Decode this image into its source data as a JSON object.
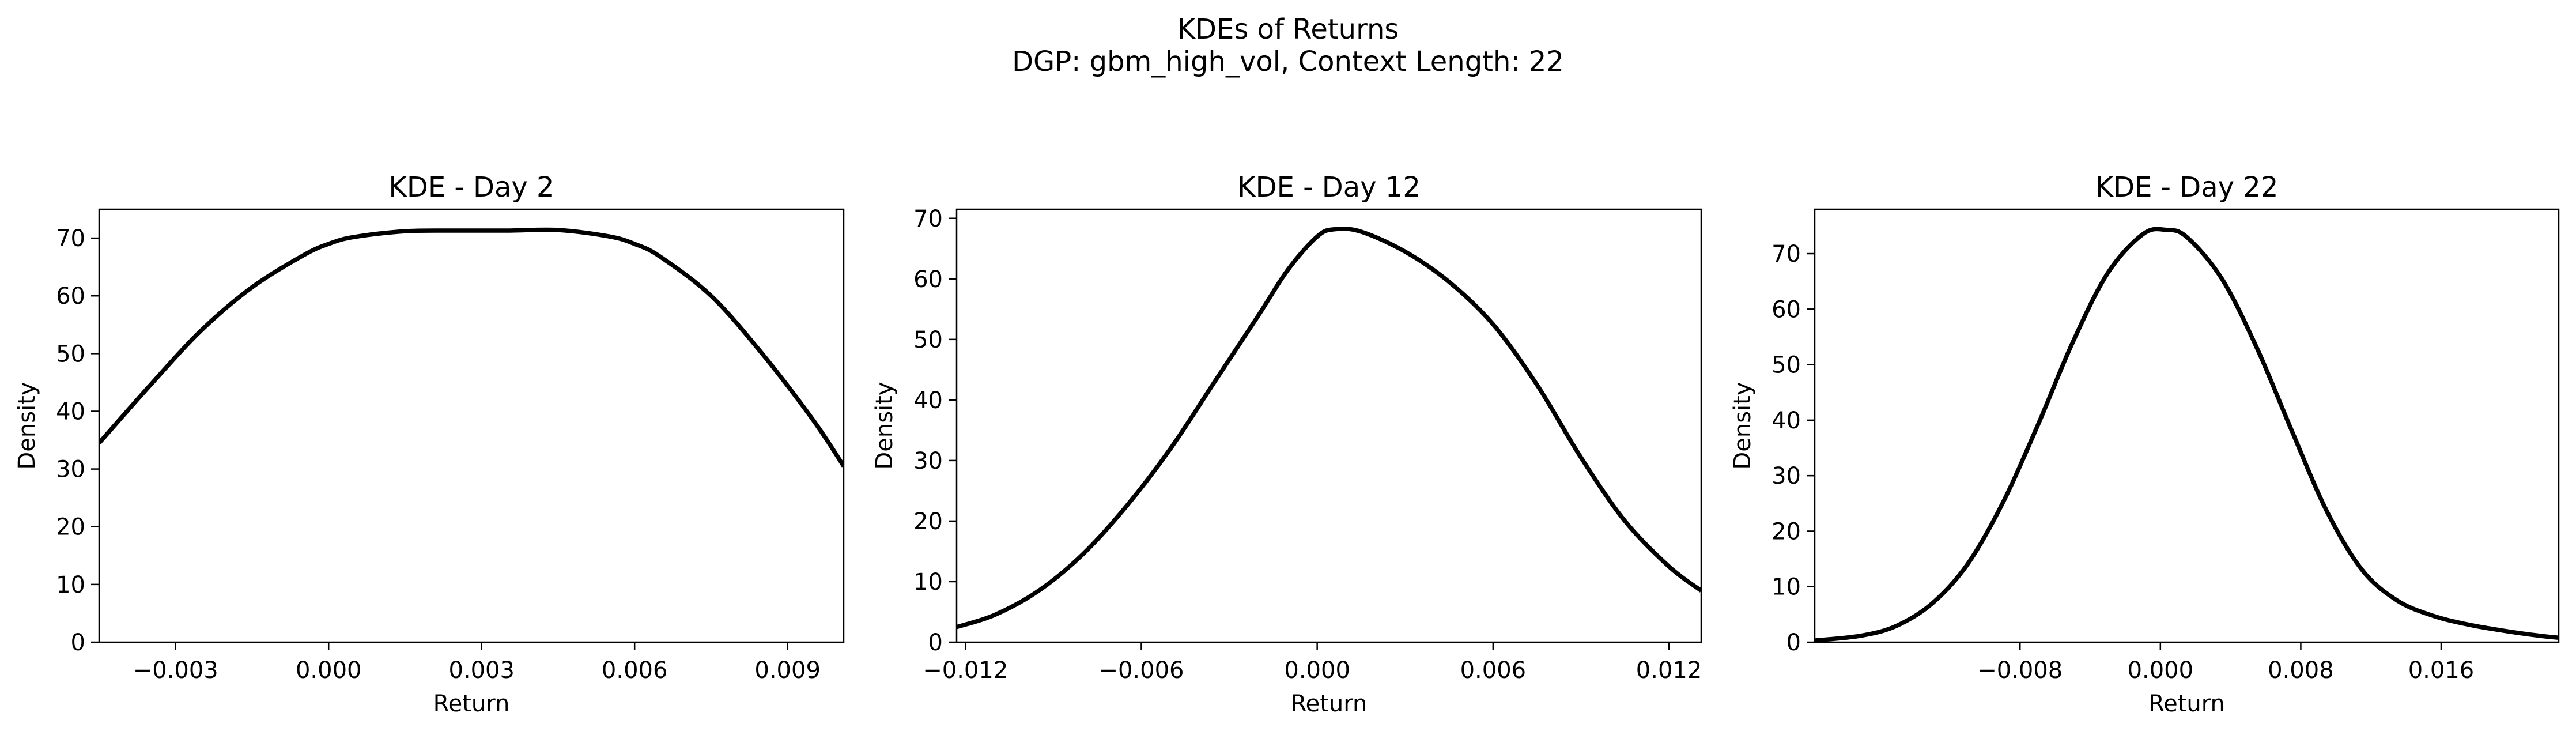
{
  "figure": {
    "title": "KDEs of Returns",
    "subtitle": "DGP: gbm_high_vol, Context Length: 22"
  },
  "chart_data": [
    {
      "type": "line",
      "title": "KDE - Day 2",
      "xlabel": "Return",
      "ylabel": "Density",
      "xlim": [
        -0.0045,
        0.0101
      ],
      "ylim": [
        0,
        75
      ],
      "xticks": [
        -0.003,
        0.0,
        0.003,
        0.006,
        0.009
      ],
      "xtick_labels": [
        "−0.003",
        "0.000",
        "0.003",
        "0.006",
        "0.009"
      ],
      "yticks": [
        0,
        10,
        20,
        30,
        40,
        50,
        60,
        70
      ],
      "ytick_labels": [
        "0",
        "10",
        "20",
        "30",
        "40",
        "50",
        "60",
        "70"
      ],
      "grid": false,
      "series": [
        {
          "color": "#000000",
          "x": [
            -0.0045,
            -0.0035,
            -0.0025,
            -0.0015,
            -0.0005,
            0.0,
            0.0005,
            0.0015,
            0.0025,
            0.0035,
            0.0045,
            0.0055,
            0.006,
            0.0065,
            0.0075,
            0.0085,
            0.0095,
            0.0101
          ],
          "y": [
            34.5,
            44.5,
            54.0,
            61.5,
            67.0,
            69.0,
            70.2,
            71.2,
            71.3,
            71.3,
            71.4,
            70.3,
            69.0,
            66.8,
            60.0,
            50.0,
            38.5,
            30.5
          ]
        }
      ]
    },
    {
      "type": "line",
      "title": "KDE - Day 12",
      "xlabel": "Return",
      "ylabel": "Density",
      "xlim": [
        -0.0123,
        0.0131
      ],
      "ylim": [
        0,
        71.5
      ],
      "xticks": [
        -0.012,
        -0.006,
        0.0,
        0.006,
        0.012
      ],
      "xtick_labels": [
        "−0.012",
        "−0.006",
        "0.000",
        "0.006",
        "0.012"
      ],
      "yticks": [
        0,
        10,
        20,
        30,
        40,
        50,
        60,
        70
      ],
      "ytick_labels": [
        "0",
        "10",
        "20",
        "30",
        "40",
        "50",
        "60",
        "70"
      ],
      "grid": false,
      "series": [
        {
          "color": "#000000",
          "x": [
            -0.0123,
            -0.011,
            -0.0095,
            -0.008,
            -0.0065,
            -0.005,
            -0.0035,
            -0.002,
            -0.001,
            0.0,
            0.0006,
            0.0015,
            0.003,
            0.0045,
            0.006,
            0.0075,
            0.009,
            0.0105,
            0.012,
            0.0131
          ],
          "y": [
            2.5,
            4.5,
            8.5,
            14.5,
            22.5,
            32.0,
            43.0,
            54.0,
            61.5,
            67.0,
            68.2,
            67.8,
            64.5,
            59.5,
            52.5,
            42.5,
            30.5,
            20.0,
            12.5,
            8.5
          ]
        }
      ]
    },
    {
      "type": "line",
      "title": "KDE - Day 22",
      "xlabel": "Return",
      "ylabel": "Density",
      "xlim": [
        -0.0197,
        0.0227
      ],
      "ylim": [
        0,
        78
      ],
      "xticks": [
        -0.008,
        0.0,
        0.008,
        0.016
      ],
      "xtick_labels": [
        "−0.008",
        "0.000",
        "0.008",
        "0.016"
      ],
      "yticks": [
        0,
        10,
        20,
        30,
        40,
        50,
        60,
        70
      ],
      "ytick_labels": [
        "0",
        "10",
        "20",
        "30",
        "40",
        "50",
        "60",
        "70"
      ],
      "grid": false,
      "series": [
        {
          "color": "#000000",
          "x": [
            -0.0197,
            -0.017,
            -0.015,
            -0.013,
            -0.011,
            -0.009,
            -0.007,
            -0.005,
            -0.003,
            -0.001,
            0.0003,
            0.0015,
            0.0035,
            0.0055,
            0.0075,
            0.0095,
            0.0115,
            0.0135,
            0.0155,
            0.0175,
            0.0195,
            0.0215,
            0.0227
          ],
          "y": [
            0.3,
            1.2,
            3.0,
            7.0,
            14.0,
            25.0,
            39.0,
            54.0,
            66.5,
            73.5,
            74.3,
            73.0,
            65.5,
            53.0,
            38.0,
            23.5,
            13.0,
            7.5,
            4.8,
            3.2,
            2.1,
            1.2,
            0.8
          ]
        }
      ]
    }
  ]
}
